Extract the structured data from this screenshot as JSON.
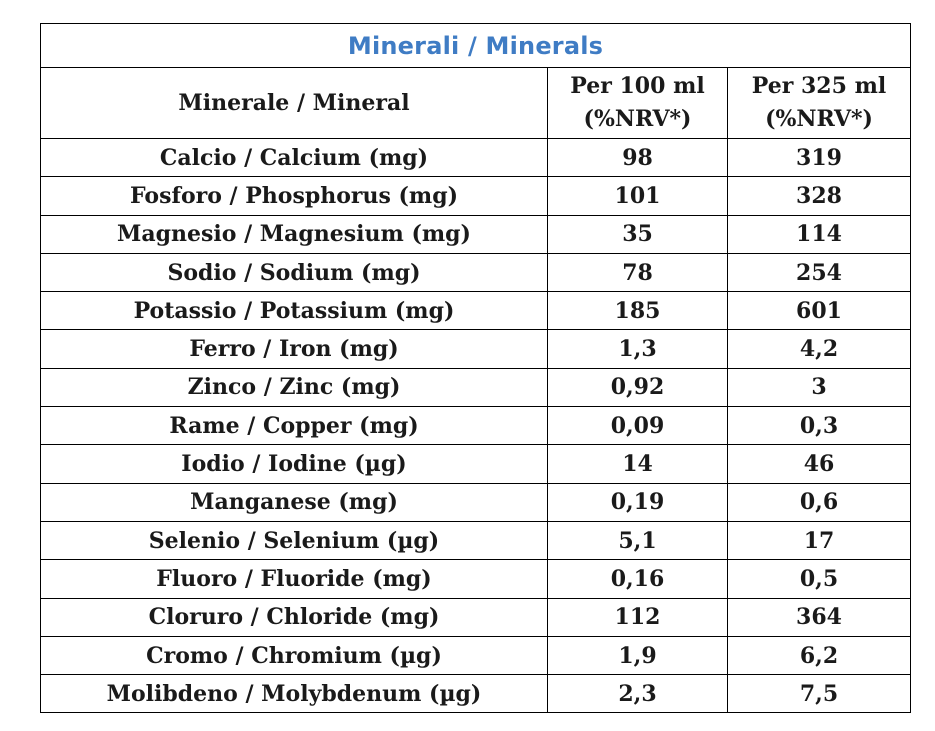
{
  "title": "Minerali / Minerals",
  "headers": {
    "mineral": "Minerale / Mineral",
    "per100_line1": "Per 100 ml",
    "per100_line2": "(%NRV*)",
    "per325_line1": "Per 325 ml",
    "per325_line2": "(%NRV*)"
  },
  "rows": [
    {
      "name": "Calcio / Calcium (mg)",
      "per100": "98",
      "per325": "319"
    },
    {
      "name": "Fosforo / Phosphorus (mg)",
      "per100": "101",
      "per325": "328"
    },
    {
      "name": "Magnesio / Magnesium (mg)",
      "per100": "35",
      "per325": "114"
    },
    {
      "name": "Sodio / Sodium (mg)",
      "per100": "78",
      "per325": "254"
    },
    {
      "name": "Potassio / Potassium (mg)",
      "per100": "185",
      "per325": "601"
    },
    {
      "name": "Ferro / Iron (mg)",
      "per100": "1,3",
      "per325": "4,2"
    },
    {
      "name": "Zinco / Zinc (mg)",
      "per100": "0,92",
      "per325": "3"
    },
    {
      "name": "Rame / Copper (mg)",
      "per100": "0,09",
      "per325": "0,3"
    },
    {
      "name": "Iodio / Iodine (µg)",
      "per100": "14",
      "per325": "46"
    },
    {
      "name": "Manganese (mg)",
      "per100": "0,19",
      "per325": "0,6"
    },
    {
      "name": "Selenio / Selenium (µg)",
      "per100": "5,1",
      "per325": "17"
    },
    {
      "name": "Fluoro / Fluoride (mg)",
      "per100": "0,16",
      "per325": "0,5"
    },
    {
      "name": "Cloruro / Chloride (mg)",
      "per100": "112",
      "per325": "364"
    },
    {
      "name": "Cromo / Chromium (µg)",
      "per100": "1,9",
      "per325": "6,2"
    },
    {
      "name": "Molibdeno / Molybdenum (µg)",
      "per100": "2,3",
      "per325": "7,5"
    }
  ]
}
